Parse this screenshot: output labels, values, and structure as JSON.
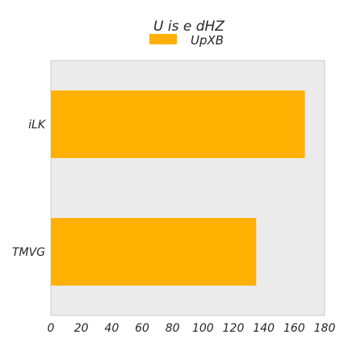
{
  "chart_data": {
    "type": "bar",
    "orientation": "horizontal",
    "title": "U is e  dHZ",
    "categories": [
      "iLK",
      "TMVG"
    ],
    "series": [
      {
        "name": "UpXB",
        "values": [
          167,
          135
        ],
        "color": "#ffb000"
      }
    ],
    "xlim": [
      0,
      180
    ],
    "xticks": [
      0,
      20,
      40,
      60,
      80,
      100,
      120,
      140,
      160,
      180
    ],
    "xlabel": "",
    "ylabel": "",
    "grid": false,
    "legend_position": "top-center",
    "plot_background": "#ebebeb"
  }
}
